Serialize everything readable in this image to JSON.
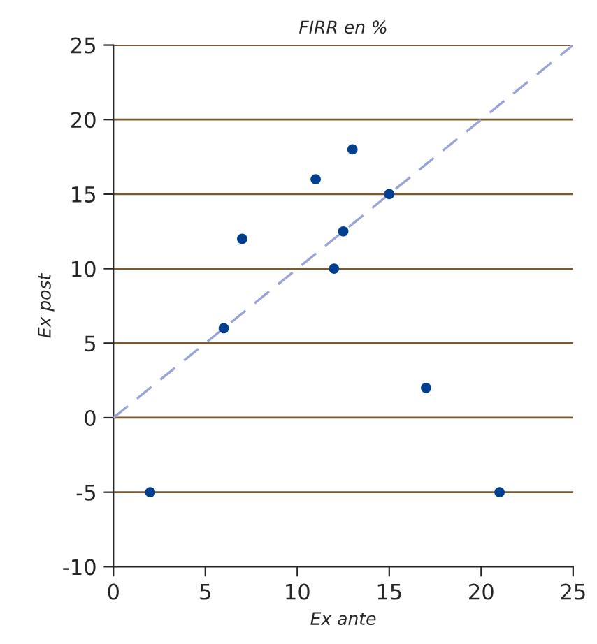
{
  "chart_data": {
    "type": "scatter",
    "title": "FIRR en %",
    "xlabel": "Ex ante",
    "ylabel": "Ex post",
    "x": [
      2,
      6,
      7,
      11,
      12,
      12.5,
      13,
      15,
      17,
      21
    ],
    "series": [
      {
        "color": "#003f8f",
        "values": [
          -5,
          6,
          12,
          16,
          10,
          12.5,
          18,
          15,
          2,
          -5
        ]
      },
      {
        "type": "line",
        "color": "#9aa3d8",
        "line_style": "dashed",
        "marker": "none",
        "x": [
          0,
          25
        ],
        "values": [
          0,
          25
        ]
      }
    ],
    "xlim": [
      0,
      25
    ],
    "xticks": [
      0,
      5,
      10,
      15,
      20,
      25
    ],
    "ylim": [
      -10,
      25
    ],
    "yticks": [
      -10,
      -5,
      0,
      5,
      10,
      15,
      20,
      25
    ],
    "grid": "y",
    "marker": "circle",
    "legend": false
  }
}
